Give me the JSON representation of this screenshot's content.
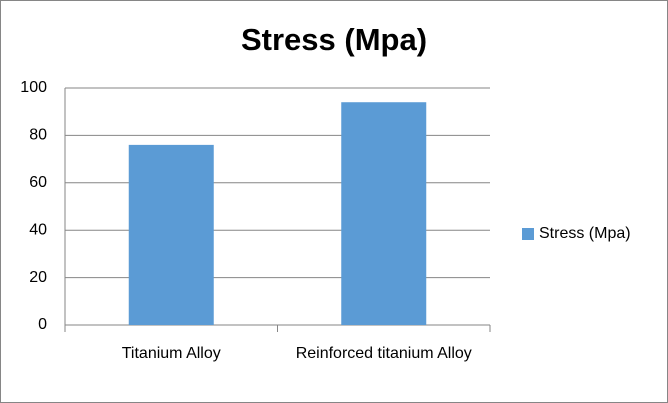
{
  "chart_data": {
    "type": "bar",
    "title": "Stress (Mpa)",
    "categories": [
      "Titanium Alloy",
      "Reinforced titanium Alloy"
    ],
    "series": [
      {
        "name": "Stress (Mpa)",
        "color": "#5b9bd5",
        "values": [
          76,
          94
        ]
      }
    ],
    "ylim": [
      0,
      100
    ],
    "yticks": [
      0,
      20,
      40,
      60,
      80,
      100
    ],
    "grid": true,
    "legend": "right"
  }
}
